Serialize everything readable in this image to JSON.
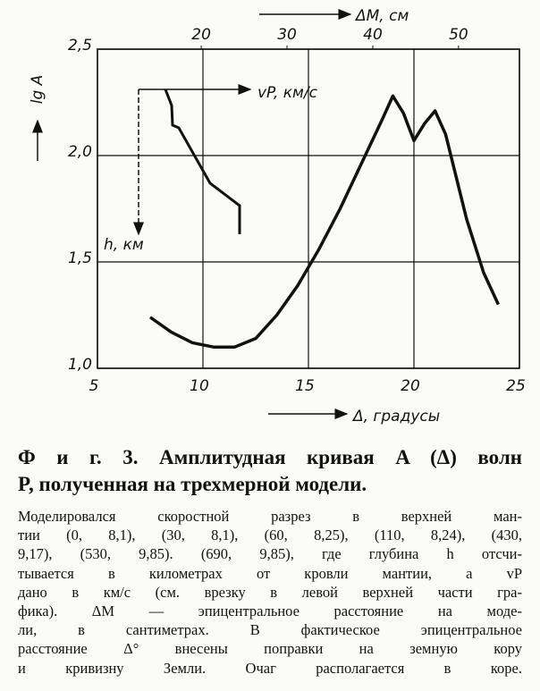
{
  "chart_data": {
    "type": "line",
    "x_label": "Δ, градусы",
    "y_label": "lg A",
    "top_axis_label": "ΔM, см",
    "inset_labels": {
      "velocity": "vP, км/с",
      "depth": "h, км"
    },
    "xlim": [
      5,
      25
    ],
    "xticks": [
      5,
      10,
      15,
      20,
      25
    ],
    "ylim": [
      1.0,
      2.5
    ],
    "yticks": [
      {
        "value": 1.0,
        "label": "1,0"
      },
      {
        "value": 1.5,
        "label": "1,5"
      },
      {
        "value": 2.0,
        "label": "2,0"
      },
      {
        "value": 2.5,
        "label": "2,5"
      }
    ],
    "x2lim": [
      7.9,
      57.1
    ],
    "x2ticks": [
      20,
      30,
      40,
      50
    ],
    "grid": true,
    "series": [
      {
        "color": "#111111",
        "x": [
          7.5,
          8.5,
          9.5,
          10.5,
          11.5,
          12.5,
          13.5,
          14.5,
          15.5,
          16.5,
          17.5,
          18.5,
          19.0,
          19.5,
          20.0,
          20.5,
          21.0,
          21.5,
          22.5,
          23.3,
          24.0
        ],
        "values": [
          1.24,
          1.17,
          1.12,
          1.1,
          1.1,
          1.14,
          1.25,
          1.39,
          1.56,
          1.75,
          1.96,
          2.17,
          2.28,
          2.2,
          2.07,
          2.15,
          2.21,
          2.1,
          1.7,
          1.45,
          1.3
        ]
      }
    ]
  },
  "caption": {
    "title_lines": [
      "Ф и г. 3. Амплитудная кривая A (Δ) волн",
      "P, полученная на трехмерной модели."
    ],
    "body_lines": [
      "Моделировался скоростной разрез в верхней ман-",
      "тии (0, 8,1), (30, 8,1), (60, 8,25), (110, 8,24), (430,",
      "9,17), (530, 9,85). (690, 9,85), где глубина h отсчи-",
      "тывается в километрах от кровли мантии, а vP",
      "дано в км/с (см. врезку в левой верхней части гра-",
      "фика). ΔM — эпицентральное расстояние на моде-",
      "ли, в сантиметрах. В фактическое эпицентральное",
      "расстояние Δ° внесены поправки на земную кору",
      "и кривизну Земли. Очаг располагается в коре."
    ]
  }
}
